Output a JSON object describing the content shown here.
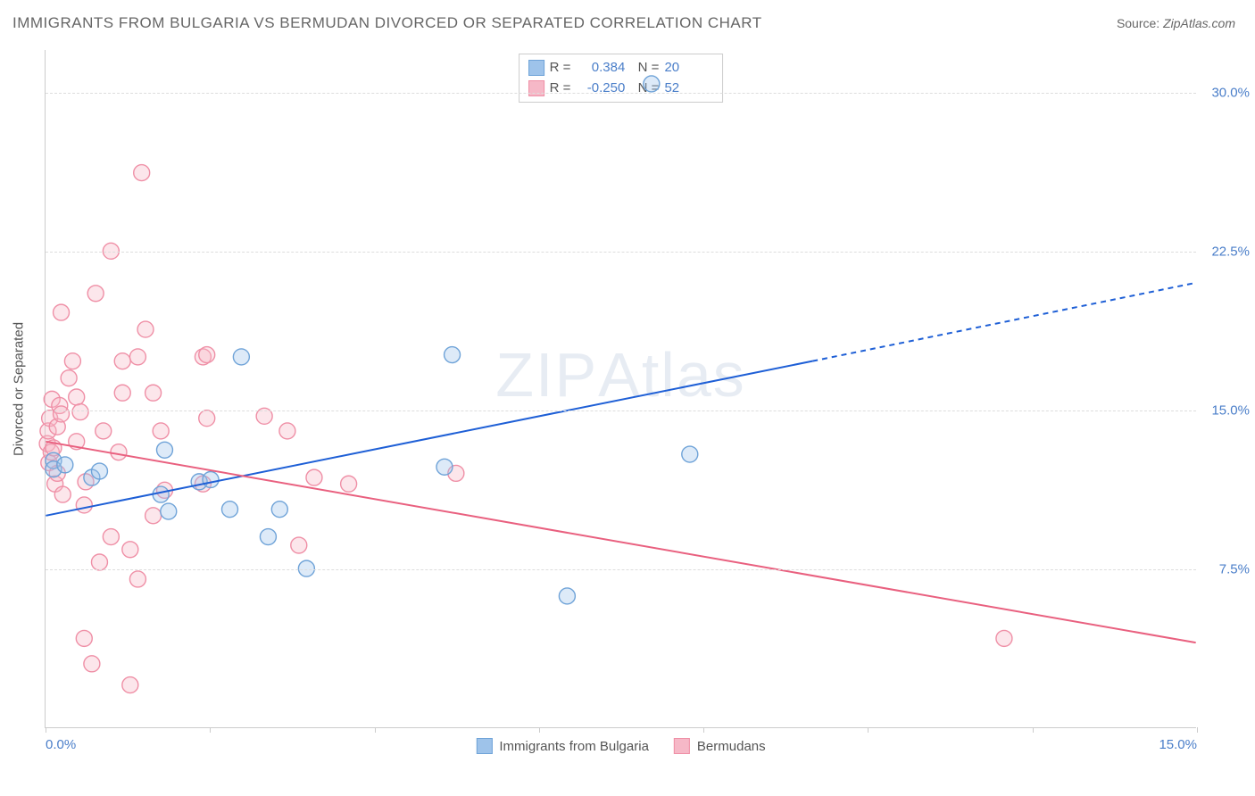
{
  "title": "IMMIGRANTS FROM BULGARIA VS BERMUDAN DIVORCED OR SEPARATED CORRELATION CHART",
  "source_label": "Source:",
  "source_value": "ZipAtlas.com",
  "watermark": "ZIPAtlas",
  "chart": {
    "type": "scatter",
    "background_color": "#ffffff",
    "grid_color": "#dddddd",
    "border_color": "#cccccc",
    "axis_label_color": "#4a7ec9",
    "y_axis_title": "Divorced or Separated",
    "x_range": [
      0.0,
      15.0
    ],
    "y_range": [
      0.0,
      32.0
    ],
    "x_ticks": [
      0.0,
      15.0
    ],
    "x_tick_labels": [
      "0.0%",
      "15.0%"
    ],
    "x_minor_ticks": [
      0.0,
      2.14,
      4.29,
      6.43,
      8.57,
      10.71,
      12.86,
      15.0
    ],
    "y_gridlines": [
      7.5,
      15.0,
      22.5,
      30.0
    ],
    "y_tick_labels": [
      "7.5%",
      "15.0%",
      "22.5%",
      "30.0%"
    ],
    "marker_radius": 9,
    "marker_fill_opacity": 0.35,
    "marker_stroke_width": 1.4,
    "line_width": 2,
    "series": [
      {
        "name": "Immigrants from Bulgaria",
        "color_fill": "#9ec3ea",
        "color_stroke": "#6fa3d8",
        "line_color": "#1e5fd6",
        "r_value": "0.384",
        "n_value": "20",
        "trend": {
          "x1": 0.0,
          "y1": 10.0,
          "x2": 10.0,
          "y2": 17.3,
          "x_dash_from": 10.0,
          "x2_ext": 15.0,
          "y2_ext": 21.0
        },
        "points": [
          [
            0.1,
            12.6
          ],
          [
            0.1,
            12.2
          ],
          [
            0.25,
            12.4
          ],
          [
            0.6,
            11.8
          ],
          [
            0.7,
            12.1
          ],
          [
            1.5,
            11.0
          ],
          [
            1.55,
            13.1
          ],
          [
            1.6,
            10.2
          ],
          [
            2.0,
            11.6
          ],
          [
            2.15,
            11.7
          ],
          [
            2.4,
            10.3
          ],
          [
            2.55,
            17.5
          ],
          [
            2.9,
            9.0
          ],
          [
            3.05,
            10.3
          ],
          [
            3.4,
            7.5
          ],
          [
            5.3,
            17.6
          ],
          [
            5.2,
            12.3
          ],
          [
            6.8,
            6.2
          ],
          [
            7.9,
            30.4
          ],
          [
            8.4,
            12.9
          ]
        ]
      },
      {
        "name": "Bermudans",
        "color_fill": "#f6b8c7",
        "color_stroke": "#ef8fa6",
        "line_color": "#e9607f",
        "r_value": "-0.250",
        "n_value": "52",
        "trend": {
          "x1": 0.0,
          "y1": 13.5,
          "x2": 15.0,
          "y2": 4.0
        },
        "points": [
          [
            0.02,
            13.4
          ],
          [
            0.03,
            14.0
          ],
          [
            0.04,
            12.5
          ],
          [
            0.05,
            14.6
          ],
          [
            0.07,
            13.0
          ],
          [
            0.08,
            15.5
          ],
          [
            0.1,
            13.2
          ],
          [
            0.12,
            11.5
          ],
          [
            0.15,
            14.2
          ],
          [
            0.15,
            12.0
          ],
          [
            0.18,
            15.2
          ],
          [
            0.2,
            19.6
          ],
          [
            0.2,
            14.8
          ],
          [
            0.22,
            11.0
          ],
          [
            0.3,
            16.5
          ],
          [
            0.35,
            17.3
          ],
          [
            0.4,
            15.6
          ],
          [
            0.4,
            13.5
          ],
          [
            0.45,
            14.9
          ],
          [
            0.5,
            10.5
          ],
          [
            0.5,
            4.2
          ],
          [
            0.52,
            11.6
          ],
          [
            0.6,
            3.0
          ],
          [
            0.65,
            20.5
          ],
          [
            0.7,
            7.8
          ],
          [
            0.75,
            14.0
          ],
          [
            0.85,
            22.5
          ],
          [
            0.85,
            9.0
          ],
          [
            0.95,
            13.0
          ],
          [
            1.0,
            17.3
          ],
          [
            1.0,
            15.8
          ],
          [
            1.1,
            2.0
          ],
          [
            1.1,
            8.4
          ],
          [
            1.2,
            17.5
          ],
          [
            1.2,
            7.0
          ],
          [
            1.25,
            26.2
          ],
          [
            1.3,
            18.8
          ],
          [
            1.4,
            10.0
          ],
          [
            1.4,
            15.8
          ],
          [
            1.5,
            14.0
          ],
          [
            1.55,
            11.2
          ],
          [
            2.05,
            11.5
          ],
          [
            2.05,
            17.5
          ],
          [
            2.1,
            17.6
          ],
          [
            2.1,
            14.6
          ],
          [
            2.85,
            14.7
          ],
          [
            3.15,
            14.0
          ],
          [
            3.3,
            8.6
          ],
          [
            3.5,
            11.8
          ],
          [
            3.95,
            11.5
          ],
          [
            5.35,
            12.0
          ],
          [
            12.5,
            4.2
          ]
        ]
      }
    ]
  },
  "legend_top": {
    "r_label": "R =",
    "n_label": "N ="
  },
  "legend_bottom_items": [
    "Immigrants from Bulgaria",
    "Bermudans"
  ]
}
